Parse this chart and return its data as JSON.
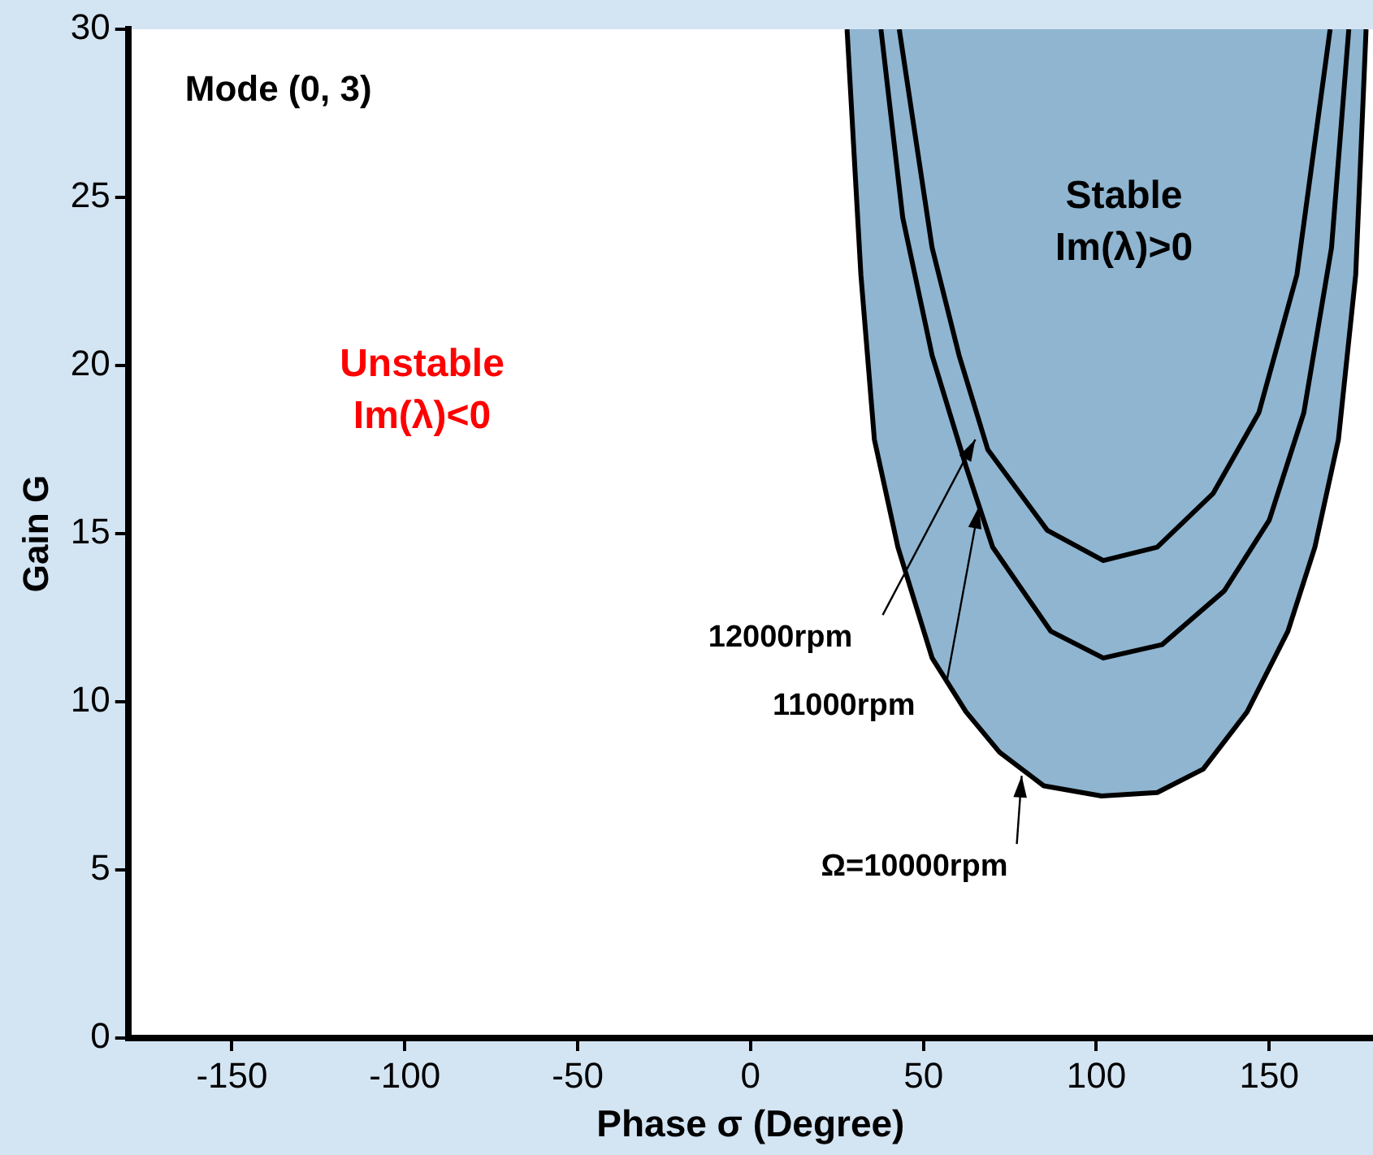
{
  "chart_data": {
    "type": "line",
    "title": "Mode (0, 3)",
    "xlabel": "Phase σ (Degree)",
    "ylabel": "Gain G",
    "xlim": [
      -180,
      180
    ],
    "xticks": [
      -150,
      -100,
      -50,
      0,
      50,
      100,
      150
    ],
    "ylim": [
      0,
      30
    ],
    "yticks": [
      0,
      5,
      10,
      15,
      20,
      25,
      30
    ],
    "grid": false,
    "legend": false,
    "marker": "none",
    "line_style": "solid",
    "series": [
      {
        "type": "area",
        "color": "#8fb5d0",
        "x": [
          27.9,
          31.9,
          35.8,
          42.6,
          52.5,
          62.3,
          72,
          84.8,
          101.5,
          117.6,
          130.9,
          143.6,
          155.4,
          163.2,
          170,
          175,
          178
        ],
        "values": [
          30,
          22.7,
          17.8,
          14.6,
          11.3,
          9.7,
          8.5,
          7.5,
          7.2,
          7.3,
          8,
          9.7,
          12.1,
          14.6,
          17.8,
          22.7,
          30
        ]
      },
      {
        "type": "line",
        "color": "#000000",
        "x": [
          37.7,
          44,
          52.5,
          62.3,
          70,
          86.8,
          102,
          119,
          137,
          150,
          160,
          168,
          173
        ],
        "values": [
          30,
          24.4,
          20.3,
          17,
          14.6,
          12.1,
          11.3,
          11.7,
          13.3,
          15.4,
          18.6,
          23.5,
          30
        ]
      },
      {
        "type": "line",
        "color": "#000000",
        "x": [
          43,
          52.5,
          60.3,
          68.6,
          85.8,
          102,
          117.6,
          133.8,
          147,
          158,
          167.6
        ],
        "values": [
          30,
          23.5,
          20.3,
          17.5,
          15.1,
          14.2,
          14.6,
          16.2,
          18.6,
          22.7,
          30
        ]
      }
    ],
    "annotations": [
      "Unstable\nIm(λ)<0",
      "Stable\nIm(λ)>0",
      {
        "text": "12000rpm",
        "x": 65,
        "y": 17.8
      },
      {
        "text": "11000rpm",
        "x": 66,
        "y": 15.8
      },
      {
        "text": "Ω=10000rpm",
        "x": 78.4,
        "y": 7.8
      }
    ]
  }
}
